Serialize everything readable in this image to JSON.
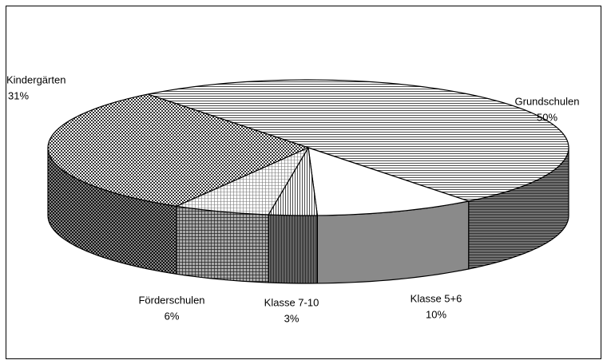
{
  "chart_data": {
    "type": "pie3d",
    "categories": [
      "Grundschulen",
      "Klasse 5+6",
      "Klasse 7-10",
      "Förderschulen",
      "Kindergärten"
    ],
    "values": [
      50,
      10,
      3,
      6,
      31
    ],
    "value_labels": [
      "50%",
      "10%",
      "3%",
      "6%",
      "31%"
    ]
  }
}
